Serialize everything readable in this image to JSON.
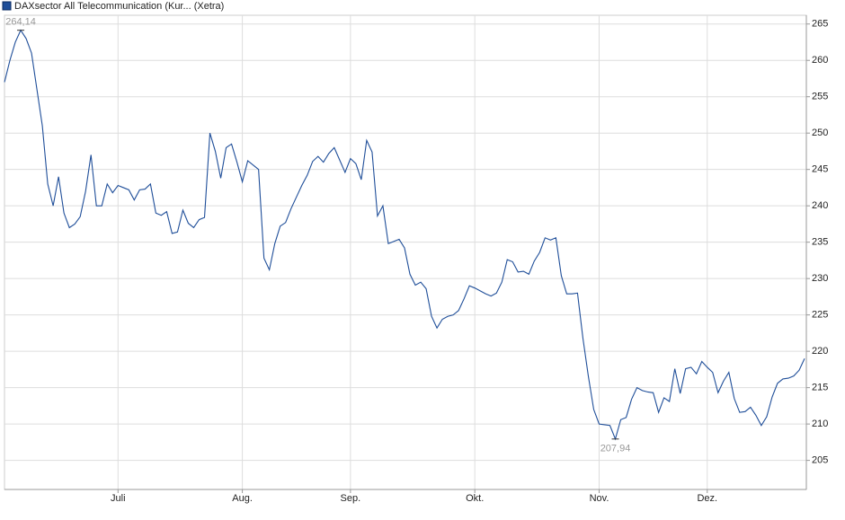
{
  "chart_data": {
    "type": "line",
    "categories": [
      null,
      null,
      null,
      null,
      null,
      null,
      null,
      null,
      null,
      null,
      null,
      null,
      null,
      null,
      null,
      null,
      null,
      null,
      null,
      null,
      null,
      "Juli",
      null,
      null,
      null,
      null,
      null,
      null,
      null,
      null,
      null,
      null,
      null,
      null,
      null,
      null,
      null,
      null,
      null,
      null,
      null,
      null,
      null,
      null,
      "Aug.",
      null,
      null,
      null,
      null,
      null,
      null,
      null,
      null,
      null,
      null,
      null,
      null,
      null,
      null,
      null,
      null,
      null,
      null,
      null,
      "Sep.",
      null,
      null,
      null,
      null,
      null,
      null,
      null,
      null,
      null,
      null,
      null,
      null,
      null,
      null,
      null,
      null,
      null,
      null,
      null,
      null,
      null,
      null,
      "Okt.",
      null,
      null,
      null,
      null,
      null,
      null,
      null,
      null,
      null,
      null,
      null,
      null,
      null,
      null,
      null,
      null,
      null,
      null,
      null,
      null,
      null,
      null,
      "Nov.",
      null,
      null,
      null,
      null,
      null,
      null,
      null,
      null,
      null,
      null,
      null,
      null,
      null,
      null,
      null,
      null,
      null,
      null,
      null,
      "Dez.",
      null,
      null,
      null,
      null,
      null,
      null,
      null,
      null,
      null,
      null,
      null,
      null,
      null,
      null,
      null,
      null,
      null,
      null
    ],
    "series": [
      {
        "name": "DAXsector All Telecommunication (Kur... (Xetra)",
        "color": "#1f4e99",
        "values": [
          257,
          260,
          262.5,
          264.14,
          263,
          261,
          256,
          251,
          243,
          240,
          244,
          239,
          237,
          237.5,
          238.5,
          242,
          247,
          240,
          240,
          243,
          241.8,
          242.8,
          242.5,
          242.2,
          240.8,
          242.2,
          242.3,
          243,
          239,
          238.7,
          239.2,
          236.2,
          236.4,
          239.4,
          237.6,
          237,
          238.1,
          238.4,
          250,
          247.5,
          243.8,
          248,
          248.5,
          246,
          243.3,
          246.2,
          245.6,
          245,
          232.8,
          231.2,
          234.8,
          237.2,
          237.7,
          239.6,
          241.2,
          242.8,
          244.2,
          246.1,
          246.8,
          246,
          247.2,
          248,
          246.3,
          244.6,
          246.5,
          245.8,
          243.6,
          249,
          247.4,
          238.6,
          240,
          234.8,
          235.1,
          235.4,
          234.2,
          230.6,
          229.1,
          229.5,
          228.6,
          224.8,
          223.2,
          224.4,
          224.8,
          225,
          225.6,
          227.2,
          229,
          228.7,
          228.3,
          227.9,
          227.6,
          228,
          229.5,
          232.6,
          232.3,
          230.9,
          231,
          230.6,
          232.4,
          233.6,
          235.6,
          235.3,
          235.6,
          230.4,
          227.9,
          227.9,
          228,
          221.8,
          216.6,
          212,
          210,
          209.9,
          209.8,
          207.94,
          210.6,
          210.9,
          213.4,
          215,
          214.6,
          214.4,
          214.3,
          211.6,
          213.6,
          213.1,
          217.6,
          214.2,
          217.6,
          217.8,
          216.9,
          218.6,
          217.8,
          217.1,
          214.3,
          215.9,
          217.1,
          213.5,
          211.6,
          211.7,
          212.3,
          211.2,
          209.8,
          211,
          213.7,
          215.6,
          216.2,
          216.3,
          216.6,
          217.4,
          219
        ],
        "value_labels": [
          null,
          null,
          null,
          "264,14",
          null,
          null,
          null,
          null,
          null,
          null,
          null,
          null,
          null,
          null,
          null,
          null,
          null,
          null,
          null,
          null,
          null,
          null,
          null,
          null,
          null,
          null,
          null,
          null,
          null,
          null,
          null,
          null,
          null,
          null,
          null,
          null,
          null,
          null,
          null,
          null,
          null,
          null,
          null,
          null,
          null,
          null,
          null,
          null,
          null,
          null,
          null,
          null,
          null,
          null,
          null,
          null,
          null,
          null,
          null,
          null,
          null,
          null,
          null,
          null,
          null,
          null,
          null,
          null,
          null,
          null,
          null,
          null,
          null,
          null,
          null,
          null,
          null,
          null,
          null,
          null,
          null,
          null,
          null,
          null,
          null,
          null,
          null,
          null,
          null,
          null,
          null,
          null,
          null,
          null,
          null,
          null,
          null,
          null,
          null,
          null,
          null,
          null,
          null,
          null,
          null,
          null,
          null,
          null,
          null,
          null,
          null,
          null,
          null,
          "207,94",
          null,
          null,
          null,
          null,
          null,
          null,
          null,
          null,
          null,
          null,
          null,
          null,
          null,
          null,
          null,
          null,
          null,
          null,
          null,
          null,
          null,
          null,
          null,
          null,
          null,
          null,
          null,
          null,
          null,
          null,
          null,
          null,
          null,
          null,
          null
        ]
      }
    ],
    "ylim": [
      201,
      266.2
    ],
    "yticks": [
      205,
      210,
      215,
      220,
      225,
      230,
      235,
      240,
      245,
      250,
      255,
      260,
      265
    ],
    "grid": true
  }
}
